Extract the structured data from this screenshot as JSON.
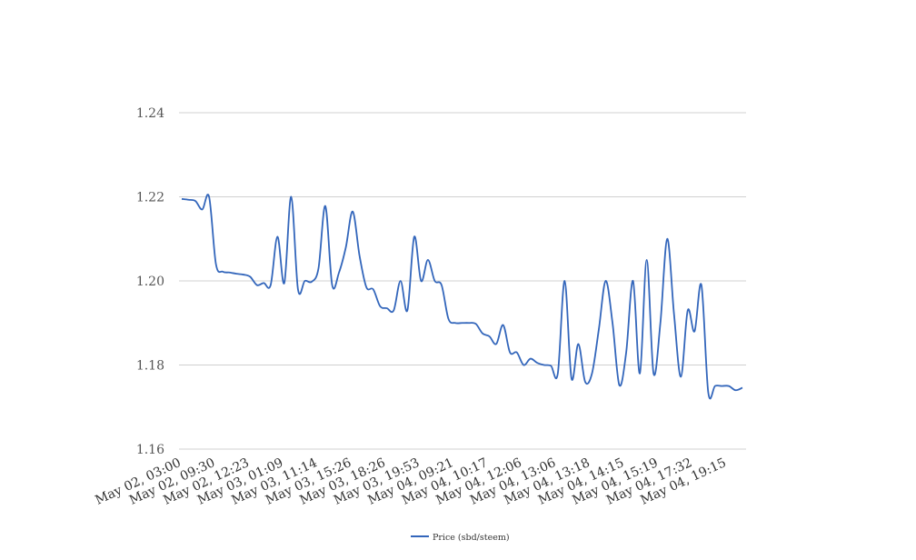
{
  "chart_data": {
    "type": "line",
    "title": "",
    "xlabel": "",
    "ylabel": "",
    "ylim": [
      1.16,
      1.24
    ],
    "yticks": [
      "1.16",
      "1.18",
      "1.20",
      "1.22",
      "1.24"
    ],
    "grid": true,
    "legend_position": "bottom-center",
    "x_tick_labels": [
      "May 02, 03:00",
      "May 02, 09:30",
      "May 02, 12:23",
      "May 03, 01:09",
      "May 03, 11:14",
      "May 03, 15:26",
      "May 03, 18:26",
      "May 03, 19:53",
      "May 04, 09:21",
      "May 04, 10:17",
      "May 04, 12:06",
      "May 04, 13:06",
      "May 04, 13:18",
      "May 04, 14:15",
      "May 04, 15:19",
      "May 04, 17:32",
      "May 04, 19:15"
    ],
    "colors": {
      "series": "#3366bb",
      "grid": "#d0d0d0"
    },
    "series": [
      {
        "name": "Price (sbd/steem)",
        "values": [
          1.2195,
          1.2193,
          1.219,
          1.217,
          1.22,
          1.204,
          1.2022,
          1.202,
          1.2017,
          1.2015,
          1.201,
          1.199,
          1.1995,
          1.199,
          1.2105,
          1.1995,
          1.22,
          1.198,
          1.2,
          1.1998,
          1.203,
          1.2178,
          1.199,
          1.202,
          1.208,
          1.2165,
          1.206,
          1.1985,
          1.198,
          1.194,
          1.1935,
          1.193,
          1.2,
          1.193,
          1.2105,
          1.2,
          1.205,
          1.2,
          1.199,
          1.191,
          1.19,
          1.19,
          1.19,
          1.1898,
          1.1875,
          1.1868,
          1.185,
          1.1895,
          1.183,
          1.183,
          1.18,
          1.1815,
          1.1805,
          1.18,
          1.1798,
          1.178,
          1.2,
          1.1768,
          1.185,
          1.176,
          1.178,
          1.1885,
          1.2,
          1.19,
          1.1752,
          1.183,
          1.2,
          1.178,
          1.205,
          1.178,
          1.19,
          1.21,
          1.192,
          1.1772,
          1.193,
          1.188,
          1.199,
          1.1735,
          1.175,
          1.175,
          1.175,
          1.174,
          1.1746
        ]
      }
    ]
  }
}
